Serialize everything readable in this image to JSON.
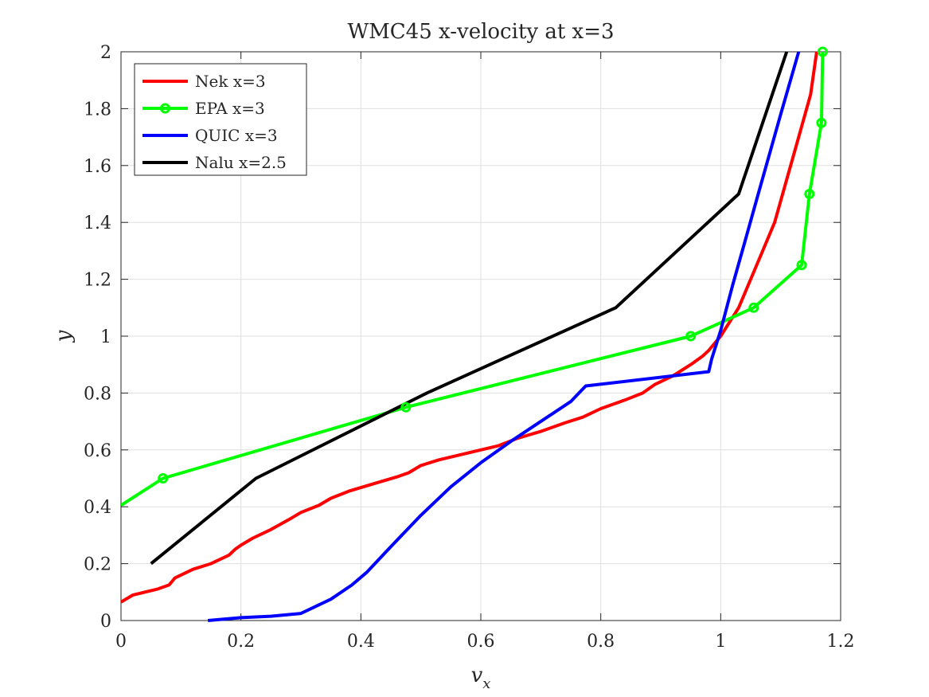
{
  "chart_data": {
    "type": "line",
    "title": "WMC45 x-velocity at x=3",
    "xlabel": "v",
    "xlabel_subscript": "x",
    "ylabel": "y",
    "xlim": [
      0,
      1.2
    ],
    "ylim": [
      0,
      2
    ],
    "xticks": [
      0,
      0.2,
      0.4,
      0.6,
      0.8,
      1,
      1.2
    ],
    "xtick_labels": [
      "0",
      "0.2",
      "0.4",
      "0.6",
      "0.8",
      "1",
      "1.2"
    ],
    "yticks": [
      0,
      0.2,
      0.4,
      0.6,
      0.8,
      1,
      1.2,
      1.4,
      1.6,
      1.8,
      2
    ],
    "ytick_labels": [
      "0",
      "0.2",
      "0.4",
      "0.6",
      "0.8",
      "1",
      "1.2",
      "1.4",
      "1.6",
      "1.8",
      "2"
    ],
    "grid": true,
    "legend_position": "top-left",
    "series": [
      {
        "name": "Nek x=3",
        "color": "#ff0000",
        "marker": "none",
        "x": [
          0,
          0.02,
          0.04,
          0.06,
          0.08,
          0.09,
          0.1,
          0.12,
          0.15,
          0.18,
          0.19,
          0.2,
          0.22,
          0.25,
          0.28,
          0.3,
          0.33,
          0.35,
          0.38,
          0.42,
          0.46,
          0.48,
          0.5,
          0.53,
          0.56,
          0.6,
          0.63,
          0.66,
          0.7,
          0.74,
          0.77,
          0.8,
          0.84,
          0.87,
          0.89,
          0.92,
          0.95,
          0.97,
          0.98,
          0.99,
          1.0,
          1.03,
          1.05,
          1.07,
          1.09,
          1.11,
          1.13,
          1.15,
          1.16
        ],
        "y": [
          0.065,
          0.09,
          0.1,
          0.11,
          0.125,
          0.15,
          0.16,
          0.18,
          0.2,
          0.23,
          0.25,
          0.265,
          0.29,
          0.32,
          0.355,
          0.38,
          0.405,
          0.43,
          0.455,
          0.48,
          0.505,
          0.52,
          0.545,
          0.565,
          0.58,
          0.6,
          0.615,
          0.64,
          0.665,
          0.695,
          0.715,
          0.745,
          0.775,
          0.8,
          0.83,
          0.86,
          0.9,
          0.93,
          0.95,
          0.975,
          1.0,
          1.1,
          1.2,
          1.3,
          1.4,
          1.55,
          1.7,
          1.85,
          2.0
        ]
      },
      {
        "name": "EPA x=3",
        "color": "#00ff00",
        "marker": "circle",
        "x": [
          0.0,
          0.07,
          0.475,
          0.95,
          1.055,
          1.135,
          1.148,
          1.168,
          1.17
        ],
        "y": [
          0.405,
          0.5,
          0.75,
          1.0,
          1.1,
          1.25,
          1.5,
          1.75,
          2.0
        ],
        "marker_mask": [
          false,
          true,
          true,
          true,
          true,
          true,
          true,
          true,
          true
        ]
      },
      {
        "name": "QUIC x=3",
        "color": "#0000ff",
        "marker": "none",
        "x": [
          0.145,
          0.2,
          0.25,
          0.3,
          0.35,
          0.385,
          0.41,
          0.45,
          0.5,
          0.55,
          0.6,
          0.65,
          0.7,
          0.75,
          0.775,
          0.98,
          0.985,
          1.0,
          1.02,
          1.04,
          1.06,
          1.08,
          1.1,
          1.13
        ],
        "y": [
          0.0,
          0.01,
          0.015,
          0.025,
          0.075,
          0.125,
          0.17,
          0.26,
          0.37,
          0.47,
          0.555,
          0.63,
          0.7,
          0.77,
          0.825,
          0.875,
          0.92,
          1.02,
          1.18,
          1.33,
          1.48,
          1.63,
          1.78,
          2.0
        ]
      },
      {
        "name": "Nalu x=2.5",
        "color": "#000000",
        "marker": "none",
        "x": [
          0.05,
          0.225,
          0.51,
          0.825,
          1.03,
          1.11
        ],
        "y": [
          0.2,
          0.5,
          0.8,
          1.1,
          1.5,
          2.0
        ]
      }
    ]
  }
}
